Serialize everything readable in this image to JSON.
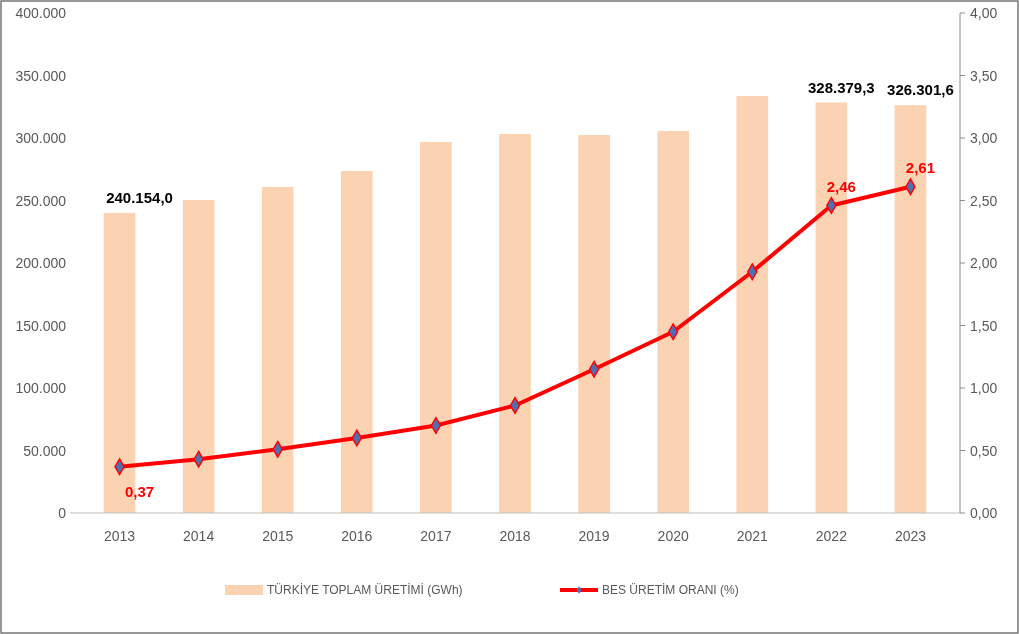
{
  "chart_data": {
    "type": "bar",
    "categories": [
      "2013",
      "2014",
      "2015",
      "2016",
      "2017",
      "2018",
      "2019",
      "2020",
      "2021",
      "2022",
      "2023"
    ],
    "series": [
      {
        "name": "TÜRKİYE TOPLAM ÜRETİMİ (GWh)",
        "color": "#fbd3b3",
        "values": [
          240154.0,
          250400,
          260800,
          273600,
          296800,
          303200,
          302400,
          305600,
          333600,
          328379.3,
          326301.6
        ],
        "value_labels": [
          "240.154,0",
          null,
          null,
          null,
          null,
          null,
          null,
          null,
          null,
          "328.379,3",
          "326.301,6"
        ]
      },
      {
        "name": "BES ÜRETİM ORANI (%)",
        "type": "line",
        "axis": "y2",
        "color": "#ff0000",
        "marker": "diamond",
        "values": [
          0.37,
          0.43,
          0.51,
          0.6,
          0.7,
          0.86,
          1.15,
          1.45,
          1.93,
          2.46,
          2.61
        ],
        "value_labels": [
          "0,37",
          null,
          null,
          null,
          null,
          null,
          null,
          null,
          null,
          "2,46",
          "2,61"
        ]
      }
    ],
    "ylim": [
      0,
      400000
    ],
    "yticks": [
      0,
      {
        "value": 50000,
        "label": "50.000"
      },
      {
        "value": 100000,
        "label": "100.000"
      },
      {
        "value": 150000,
        "label": "150.000"
      },
      {
        "value": 200000,
        "label": "200.000"
      },
      {
        "value": 250000,
        "label": "250.000"
      },
      {
        "value": 300000,
        "label": "300.000"
      },
      {
        "value": 350000,
        "label": "350.000"
      },
      {
        "value": 400000,
        "label": "400.000"
      }
    ],
    "y2lim": [
      0,
      4
    ],
    "y2ticks": [
      {
        "value": 0,
        "label": "0,00"
      },
      {
        "value": 0.5,
        "label": "0,50"
      },
      {
        "value": 1,
        "label": "1,00"
      },
      {
        "value": 1.5,
        "label": "1,50"
      },
      {
        "value": 2,
        "label": "2,00"
      },
      {
        "value": 2.5,
        "label": "2,50"
      },
      {
        "value": 3,
        "label": "3,00"
      },
      {
        "value": 3.5,
        "label": "3,50"
      },
      {
        "value": 4,
        "label": "4,00"
      }
    ],
    "grid": false,
    "legend": "bottom"
  }
}
